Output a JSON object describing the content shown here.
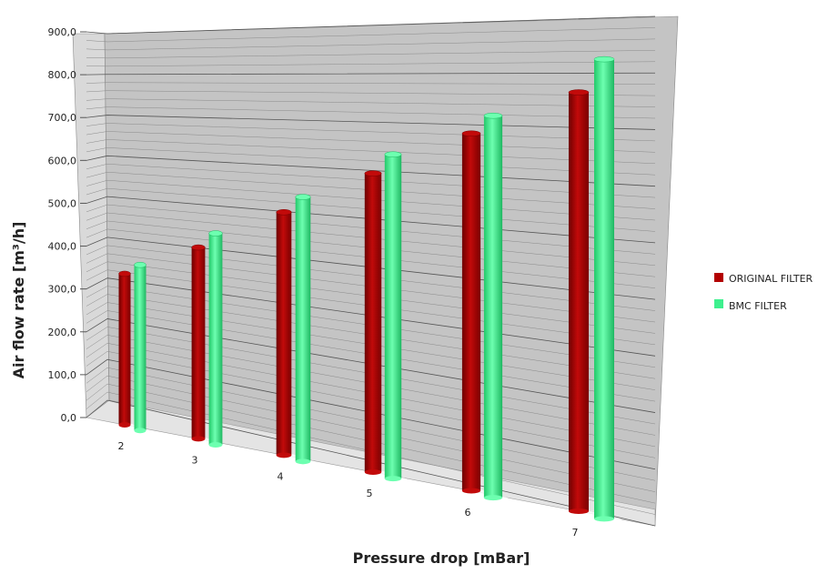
{
  "chart_data": {
    "type": "bar",
    "style": "3d-cylinder",
    "title": "",
    "xlabel": "Pressure drop [mBar]",
    "ylabel": "Air flow rate [m³/h]",
    "categories": [
      "2",
      "3",
      "4",
      "5",
      "6",
      "7"
    ],
    "ylim": [
      0,
      900
    ],
    "yticks": [
      "0,0",
      "100,0",
      "200,0",
      "300,0",
      "400,0",
      "500,0",
      "600,0",
      "700,0",
      "800,0",
      "900,0"
    ],
    "grid": true,
    "legend_position": "right",
    "series": [
      {
        "name": "ORIGINAL FILTER",
        "color": "#b30000",
        "values": [
          345,
          420,
          510,
          600,
          685,
          765
        ]
      },
      {
        "name": "BMC FILTER",
        "color": "#3ef08e",
        "values": [
          375,
          460,
          550,
          645,
          725,
          830
        ]
      }
    ]
  }
}
